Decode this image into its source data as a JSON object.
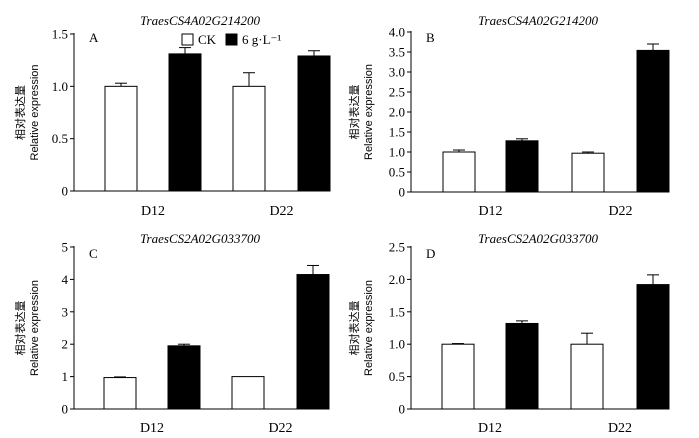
{
  "chart_data": [
    {
      "type": "bar",
      "panel_label": "A",
      "title": "TraesCS4A02G214200",
      "ylabel_cn": "相对表达量",
      "ylabel_en": "Relative expression",
      "categories": [
        "D12",
        "D22"
      ],
      "ylim": [
        0,
        1.5
      ],
      "yticks": [
        "0",
        "0.5",
        "1.0",
        "1.5"
      ],
      "legend": {
        "placement": "top-center",
        "items": [
          "CK",
          "6 g·L⁻¹"
        ]
      },
      "series": [
        {
          "name": "CK",
          "color": "#ffffff",
          "values": [
            1.0,
            1.0
          ],
          "errors": [
            0.03,
            0.13
          ]
        },
        {
          "name": "6 g·L⁻¹",
          "color": "#000000",
          "values": [
            1.31,
            1.29
          ],
          "errors": [
            0.06,
            0.05
          ]
        }
      ]
    },
    {
      "type": "bar",
      "panel_label": "B",
      "title": "TraesCS4A02G214200",
      "ylabel_cn": "相对表达量",
      "ylabel_en": "Relative expression",
      "categories": [
        "D12",
        "D22"
      ],
      "ylim": [
        0,
        4.0
      ],
      "yticks": [
        "0",
        "0.5",
        "1.0",
        "1.5",
        "2.0",
        "2.5",
        "3.0",
        "3.5",
        "4.0"
      ],
      "series": [
        {
          "name": "CK",
          "color": "#ffffff",
          "values": [
            1.0,
            0.97
          ],
          "errors": [
            0.05,
            0.03
          ]
        },
        {
          "name": "6 g·L⁻¹",
          "color": "#000000",
          "values": [
            1.28,
            3.54
          ],
          "errors": [
            0.05,
            0.16
          ]
        }
      ]
    },
    {
      "type": "bar",
      "panel_label": "C",
      "title": "TraesCS2A02G033700",
      "ylabel_cn": "相对表达量",
      "ylabel_en": "Relative expression",
      "categories": [
        "D12",
        "D22"
      ],
      "ylim": [
        0,
        5
      ],
      "yticks": [
        "0",
        "1",
        "2",
        "3",
        "4",
        "5"
      ],
      "series": [
        {
          "name": "CK",
          "color": "#ffffff",
          "values": [
            0.97,
            1.0
          ],
          "errors": [
            0.02,
            0.0
          ]
        },
        {
          "name": "6 g·L⁻¹",
          "color": "#000000",
          "values": [
            1.95,
            4.15
          ],
          "errors": [
            0.05,
            0.28
          ]
        }
      ]
    },
    {
      "type": "bar",
      "panel_label": "D",
      "title": "TraesCS2A02G033700",
      "ylabel_cn": "相对表达量",
      "ylabel_en": "Relative expression",
      "categories": [
        "D12",
        "D22"
      ],
      "ylim": [
        0,
        2.5
      ],
      "yticks": [
        "0",
        "0.5",
        "1.0",
        "1.5",
        "2.0",
        "2.5"
      ],
      "series": [
        {
          "name": "CK",
          "color": "#ffffff",
          "values": [
            1.0,
            1.0
          ],
          "errors": [
            0.01,
            0.17
          ]
        },
        {
          "name": "6 g·L⁻¹",
          "color": "#000000",
          "values": [
            1.32,
            1.92
          ],
          "errors": [
            0.04,
            0.15
          ]
        }
      ]
    }
  ]
}
